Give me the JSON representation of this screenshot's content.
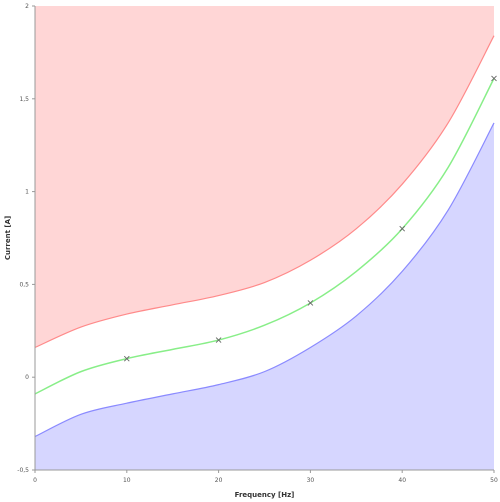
{
  "chart_data": {
    "type": "area",
    "xlabel": "Frequency [Hz]",
    "ylabel": "Current [A]",
    "xlim": [
      0,
      50
    ],
    "ylim": [
      -0.5,
      2
    ],
    "x_ticks": [
      0,
      10,
      20,
      30,
      40,
      50
    ],
    "y_ticks": [
      -0.5,
      0,
      0.5,
      1,
      1.5,
      2
    ],
    "x_tick_labels": [
      "0",
      "10",
      "20",
      "30",
      "40",
      "50"
    ],
    "y_tick_labels": [
      "-0,5",
      "0",
      "0,5",
      "1",
      "1,5",
      "2"
    ],
    "grid": false,
    "legend": "none",
    "curve": {
      "x": [
        0,
        5,
        10,
        15,
        20,
        25,
        30,
        35,
        40,
        45,
        50
      ],
      "y": [
        -0.09,
        0.03,
        0.1,
        0.15,
        0.2,
        0.28,
        0.4,
        0.57,
        0.8,
        1.13,
        1.61
      ]
    },
    "upper_bound": {
      "x": [
        0,
        5,
        10,
        15,
        20,
        25,
        30,
        35,
        40,
        45,
        50
      ],
      "y": [
        0.16,
        0.27,
        0.34,
        0.39,
        0.44,
        0.51,
        0.63,
        0.8,
        1.04,
        1.37,
        1.84
      ]
    },
    "lower_bound": {
      "x": [
        0,
        5,
        10,
        15,
        20,
        25,
        30,
        35,
        40,
        45,
        50
      ],
      "y": [
        -0.32,
        -0.2,
        -0.14,
        -0.09,
        -0.04,
        0.03,
        0.16,
        0.33,
        0.57,
        0.9,
        1.37
      ]
    },
    "markers": {
      "x": [
        10,
        20,
        30,
        40,
        50
      ],
      "y": [
        0.1,
        0.2,
        0.4,
        0.8,
        1.61
      ]
    },
    "colors": {
      "upper_fill": "#ffd6d6",
      "upper_line": "#ff8a8a",
      "lower_fill": "#d6d6ff",
      "lower_line": "#8a8aff",
      "curve": "#88ee88",
      "marker": "#666666",
      "band": "#ffffff"
    }
  }
}
